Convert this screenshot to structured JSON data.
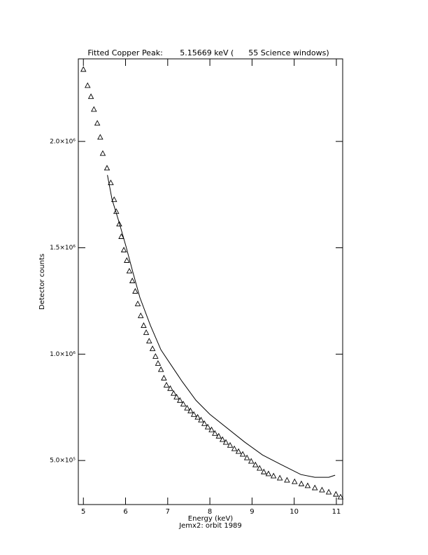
{
  "chart_data": {
    "type": "scatter",
    "title": "Fitted Copper Peak:       5.15669 keV (      55 Science windows)",
    "x_label": "Energy (keV)",
    "subtitle": "Jemx2: orbit 1989",
    "y_label": "Detector counts",
    "xlim": [
      4.88,
      11.15
    ],
    "ylim": [
      293000,
      2388000
    ],
    "xticks": [
      5,
      6,
      7,
      8,
      9,
      10,
      11
    ],
    "yticks": [
      {
        "value": 500000,
        "label": "5.0×10⁵"
      },
      {
        "value": 1000000,
        "label": "1.0×10⁶"
      },
      {
        "value": 1500000,
        "label": "1.5×10⁶"
      },
      {
        "value": 2000000,
        "label": "2.0×10⁶"
      }
    ],
    "series": [
      {
        "marker": "triangle",
        "color": "#000000",
        "x": [
          5.0,
          5.1,
          5.18,
          5.25,
          5.33,
          5.4,
          5.46,
          5.56,
          5.65,
          5.73,
          5.78,
          5.85,
          5.9,
          5.96,
          6.03,
          6.09,
          6.16,
          6.23,
          6.29,
          6.36,
          6.43,
          6.49,
          6.56,
          6.64,
          6.71,
          6.77,
          6.84,
          6.91,
          6.97,
          7.06,
          7.14,
          7.21,
          7.29,
          7.37,
          7.46,
          7.54,
          7.62,
          7.71,
          7.79,
          7.87,
          7.95,
          8.04,
          8.12,
          8.21,
          8.3,
          8.38,
          8.48,
          8.58,
          8.68,
          8.78,
          8.88,
          8.98,
          9.08,
          9.18,
          9.28,
          9.39,
          9.51,
          9.66,
          9.83,
          10.01,
          10.17,
          10.32,
          10.49,
          10.66,
          10.82,
          10.99,
          11.1
        ],
        "values": [
          2339000,
          2263000,
          2211000,
          2151000,
          2086000,
          2020000,
          1944000,
          1875000,
          1806000,
          1727000,
          1671000,
          1612000,
          1553000,
          1490000,
          1441000,
          1391000,
          1345000,
          1296000,
          1237000,
          1181000,
          1135000,
          1102000,
          1062000,
          1026000,
          990000,
          957000,
          928000,
          888000,
          855000,
          839000,
          816000,
          799000,
          783000,
          766000,
          747000,
          734000,
          717000,
          704000,
          691000,
          674000,
          658000,
          645000,
          628000,
          615000,
          599000,
          586000,
          572000,
          556000,
          543000,
          530000,
          513000,
          497000,
          480000,
          464000,
          447000,
          438000,
          428000,
          418000,
          408000,
          401000,
          391000,
          382000,
          372000,
          362000,
          352000,
          342000,
          329000
        ]
      },
      {
        "marker": "line",
        "color": "#000000",
        "x": [
          5.57,
          5.68,
          5.85,
          6.01,
          6.17,
          6.34,
          6.59,
          6.84,
          7.34,
          7.67,
          8.0,
          8.83,
          9.25,
          9.66,
          10.16,
          10.49,
          10.82,
          10.97
        ],
        "values": [
          1842000,
          1727000,
          1618000,
          1507000,
          1388000,
          1266000,
          1135000,
          1020000,
          872000,
          783000,
          717000,
          586000,
          526000,
          484000,
          434000,
          421000,
          421000,
          431000
        ]
      }
    ]
  }
}
